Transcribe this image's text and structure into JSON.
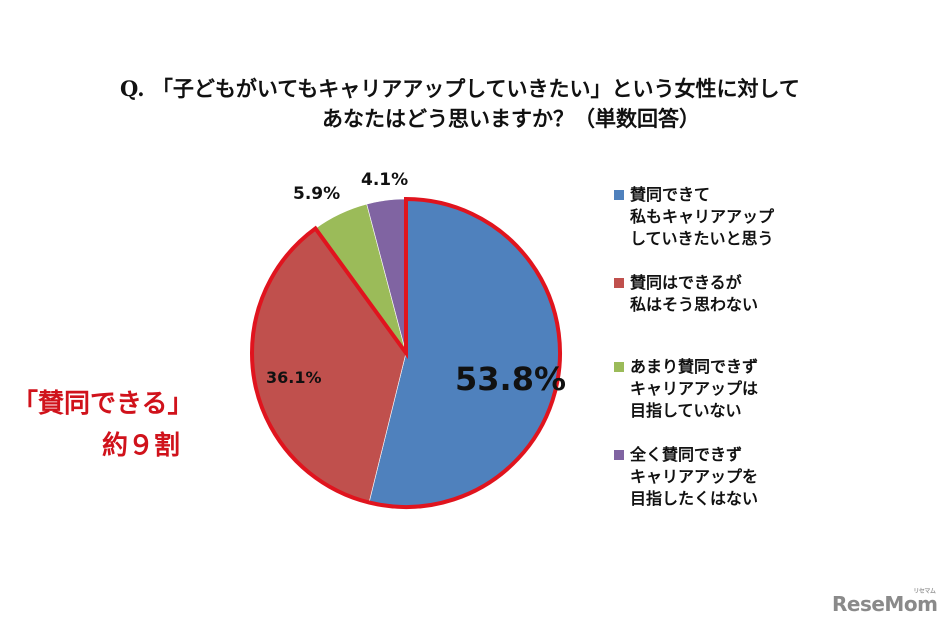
{
  "title": {
    "line1": "Q. 「子どもがいてもキャリアアップしていきたい」という女性に対して",
    "line2": "あなたはどう思いますか？（単数回答）"
  },
  "callout": {
    "line1": "「賛同できる」",
    "line2": "約９割",
    "color": "#d0121b"
  },
  "legend": [
    {
      "label": "賛同できて\n私もキャリアアップ\nしていきたいと思う",
      "color": "#4f81bd"
    },
    {
      "label": "賛同はできるが\n私はそう思わない",
      "color": "#c0504d"
    },
    {
      "label": "あまり賛同できず\nキャリアアップは\n目指していない",
      "color": "#9bbb59"
    },
    {
      "label": "全く賛同できず\nキャリアアップを\n目指したくはない",
      "color": "#8064a2"
    }
  ],
  "logo": {
    "text": "ReseMom",
    "sub": "リセマム"
  },
  "chart_data": {
    "type": "pie",
    "title": "Q. 「子どもがいてもキャリアアップしていきたい」という女性に対して あなたはどう思いますか？（単数回答）",
    "categories": [
      "賛同できて私もキャリアアップしていきたいと思う",
      "賛同はできるが私はそう思わない",
      "あまり賛同できずキャリアアップは目指していない",
      "全く賛同できずキャリアアップを目指したくはない"
    ],
    "values": [
      53.8,
      36.1,
      5.9,
      4.1
    ],
    "labels": [
      "53.8%",
      "36.1%",
      "5.9%",
      "4.1%"
    ],
    "colors": [
      "#4f81bd",
      "#c0504d",
      "#9bbb59",
      "#8064a2"
    ],
    "highlight": {
      "slices": [
        0,
        1
      ],
      "outline_color": "#e0141e",
      "annotation": "「賛同できる」約９割"
    },
    "start_angle": "12 o'clock, clockwise",
    "legend_position": "right"
  }
}
